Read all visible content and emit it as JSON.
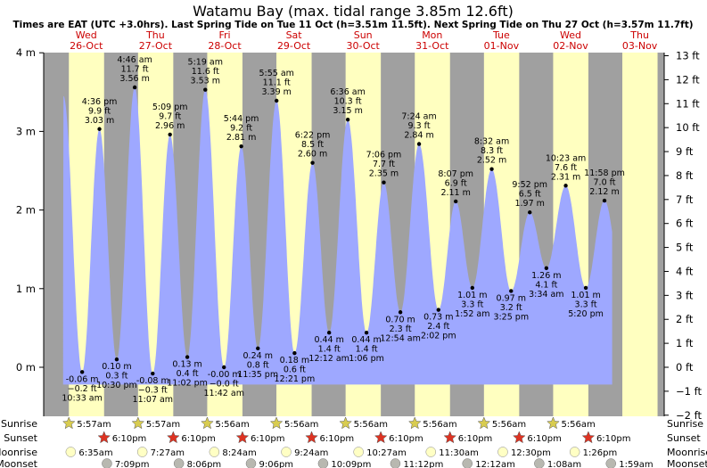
{
  "chart_data": {
    "type": "area",
    "title": "Watamu Bay (max. tidal range 3.85m 12.6ft)",
    "subtitle": "Times are EAT (UTC +3.0hrs). Last Spring Tide on Tue 11 Oct (h=3.51m 11.5ft). Next Spring Tide on Thu 27 Oct (h=3.57m 11.7ft)",
    "ylim_m": [
      -0.6,
      4.0
    ],
    "xlim_days": [
      -0.1,
      8.15
    ],
    "left_ticks": [
      "4 m",
      "3 m",
      "2 m",
      "1 m",
      "0 m"
    ],
    "left_tick_values": [
      4,
      3,
      2,
      1,
      0
    ],
    "right_ticks": [
      "13 ft",
      "12 ft",
      "11 ft",
      "10 ft",
      "9 ft",
      "8 ft",
      "7 ft",
      "6 ft",
      "5 ft",
      "4 ft",
      "3 ft",
      "2 ft",
      "1 ft",
      "0 ft",
      "−1 ft",
      "−2 ft"
    ],
    "right_tick_values": [
      13,
      12,
      11,
      10,
      9,
      8,
      7,
      6,
      5,
      4,
      3,
      2,
      1,
      0,
      -1,
      -2
    ],
    "days": [
      {
        "dow": "Wed",
        "date": "26-Oct"
      },
      {
        "dow": "Thu",
        "date": "27-Oct"
      },
      {
        "dow": "Fri",
        "date": "28-Oct"
      },
      {
        "dow": "Sat",
        "date": "29-Oct"
      },
      {
        "dow": "Sun",
        "date": "30-Oct"
      },
      {
        "dow": "Mon",
        "date": "31-Oct"
      },
      {
        "dow": "Tue",
        "date": "01-Nov"
      },
      {
        "dow": "Wed",
        "date": "02-Nov"
      },
      {
        "dow": "Thu",
        "date": "03-Nov"
      }
    ],
    "tides": [
      {
        "type": "low",
        "t": 0.44,
        "time": "10:33 am",
        "m": "-0.06 m",
        "ft": "−0.2 ft",
        "h": -0.06
      },
      {
        "type": "high",
        "t": 0.69,
        "time": "4:36 pm",
        "m": "3.03 m",
        "ft": "9.9 ft",
        "h": 3.03
      },
      {
        "type": "low",
        "t": 0.94,
        "time": "10:30 pm",
        "m": "0.10 m",
        "ft": "0.3 ft",
        "h": 0.1
      },
      {
        "type": "high",
        "t": 1.2,
        "time": "4:46 am",
        "m": "3.56 m",
        "ft": "11.7 ft",
        "h": 3.56
      },
      {
        "type": "low",
        "t": 1.46,
        "time": "11:07 am",
        "m": "-0.08 m",
        "ft": "−0.3 ft",
        "h": -0.08
      },
      {
        "type": "high",
        "t": 1.71,
        "time": "5:09 pm",
        "m": "2.96 m",
        "ft": "9.7 ft",
        "h": 2.96
      },
      {
        "type": "low",
        "t": 1.96,
        "time": "11:02 pm",
        "m": "0.13 m",
        "ft": "0.4 ft",
        "h": 0.13
      },
      {
        "type": "high",
        "t": 2.22,
        "time": "5:19 am",
        "m": "3.53 m",
        "ft": "11.6 ft",
        "h": 3.53
      },
      {
        "type": "low",
        "t": 2.49,
        "time": "11:42 am",
        "m": "-0.00 m",
        "ft": "−0.0 ft",
        "h": 0.0
      },
      {
        "type": "high",
        "t": 2.74,
        "time": "5:44 pm",
        "m": "2.81 m",
        "ft": "9.2 ft",
        "h": 2.81
      },
      {
        "type": "low",
        "t": 2.98,
        "time": "11:35 pm",
        "m": "0.24 m",
        "ft": "0.8 ft",
        "h": 0.24
      },
      {
        "type": "high",
        "t": 3.25,
        "time": "5:55 am",
        "m": "3.39 m",
        "ft": "11.1 ft",
        "h": 3.39
      },
      {
        "type": "low",
        "t": 3.51,
        "time": "12:21 pm",
        "m": "0.18 m",
        "ft": "0.6 ft",
        "h": 0.18
      },
      {
        "type": "high",
        "t": 3.77,
        "time": "6:22 pm",
        "m": "2.60 m",
        "ft": "8.5 ft",
        "h": 2.6
      },
      {
        "type": "low",
        "t": 4.01,
        "time": "12:12 am",
        "m": "0.44 m",
        "ft": "1.4 ft",
        "h": 0.44
      },
      {
        "type": "high",
        "t": 4.28,
        "time": "6:36 am",
        "m": "3.15 m",
        "ft": "10.3 ft",
        "h": 3.15
      },
      {
        "type": "low",
        "t": 4.55,
        "time": "1:06 pm",
        "m": "0.44 m",
        "ft": "1.4 ft",
        "h": 0.44
      },
      {
        "type": "high",
        "t": 4.8,
        "time": "7:06 pm",
        "m": "2.35 m",
        "ft": "7.7 ft",
        "h": 2.35
      },
      {
        "type": "low",
        "t": 5.04,
        "time": "12:54 am",
        "m": "0.70 m",
        "ft": "2.3 ft",
        "h": 0.7
      },
      {
        "type": "high",
        "t": 5.31,
        "time": "7:24 am",
        "m": "2.84 m",
        "ft": "9.3 ft",
        "h": 2.84
      },
      {
        "type": "low",
        "t": 5.59,
        "time": "2:02 pm",
        "m": "0.73 m",
        "ft": "2.4 ft",
        "h": 0.73
      },
      {
        "type": "high",
        "t": 5.84,
        "time": "8:07 pm",
        "m": "2.11 m",
        "ft": "6.9 ft",
        "h": 2.11
      },
      {
        "type": "low",
        "t": 6.08,
        "time": "1:52 am",
        "m": "1.01 m",
        "ft": "3.3 ft",
        "h": 1.01
      },
      {
        "type": "high",
        "t": 6.36,
        "time": "8:32 am",
        "m": "2.52 m",
        "ft": "8.3 ft",
        "h": 2.52
      },
      {
        "type": "low",
        "t": 6.64,
        "time": "3:25 pm",
        "m": "0.97 m",
        "ft": "3.2 ft",
        "h": 0.97
      },
      {
        "type": "high",
        "t": 6.91,
        "time": "9:52 pm",
        "m": "1.97 m",
        "ft": "6.5 ft",
        "h": 1.97
      },
      {
        "type": "low",
        "t": 7.15,
        "time": "3:34 am",
        "m": "1.26 m",
        "ft": "4.1 ft",
        "h": 1.26
      },
      {
        "type": "high",
        "t": 7.43,
        "time": "10:23 am",
        "m": "2.31 m",
        "ft": "7.6 ft",
        "h": 2.31
      },
      {
        "type": "low",
        "t": 7.72,
        "time": "5:20 pm",
        "m": "1.01 m",
        "ft": "3.3 ft",
        "h": 1.01
      },
      {
        "type": "high",
        "t": 7.99,
        "time": "11:58 pm",
        "m": "2.12 m",
        "ft": "7.0 ft",
        "h": 2.12
      }
    ],
    "rows": [
      {
        "label": "Sunrise",
        "marker": "sun",
        "items": [
          "5:57am",
          "5:57am",
          "5:56am",
          "5:56am",
          "5:56am",
          "5:56am",
          "5:56am",
          "5:56am"
        ]
      },
      {
        "label": "Sunset",
        "marker": "star",
        "items": [
          "6:10pm",
          "6:10pm",
          "6:10pm",
          "6:10pm",
          "6:10pm",
          "6:10pm",
          "6:10pm",
          "6:10pm"
        ]
      },
      {
        "label": "Moonrise",
        "marker": "moonrise",
        "items": [
          "6:35am",
          "7:27am",
          "8:24am",
          "9:24am",
          "10:27am",
          "11:30am",
          "12:30pm",
          "1:26pm"
        ]
      },
      {
        "label": "Moonset",
        "marker": "moonset",
        "items": [
          "7:09pm",
          "8:06pm",
          "9:06pm",
          "10:09pm",
          "11:12pm",
          "12:12am",
          "1:08am",
          "1:59am"
        ]
      }
    ],
    "row_offsets": [
      [
        0.248,
        0.248,
        0.248,
        0.248,
        0.248,
        0.248,
        0.248,
        0.248
      ],
      [
        0.757,
        0.757,
        0.757,
        0.757,
        0.757,
        0.757,
        0.757,
        0.757
      ],
      [
        0.275,
        0.31,
        0.35,
        0.39,
        0.435,
        0.48,
        0.52,
        0.56
      ],
      [
        0.798,
        0.838,
        0.88,
        0.923,
        0.967,
        1.008,
        1.047,
        1.083
      ]
    ],
    "colors": {
      "night": "#a0a0a0",
      "day": "#ffffc0",
      "tide": "#9ea8ff",
      "sunset_star": "#dd3322",
      "sunrise_star": "#d8cc50",
      "moonrise": "#ffffc4",
      "moonset": "#b8b8b0",
      "day_label": "#cc0000"
    }
  }
}
